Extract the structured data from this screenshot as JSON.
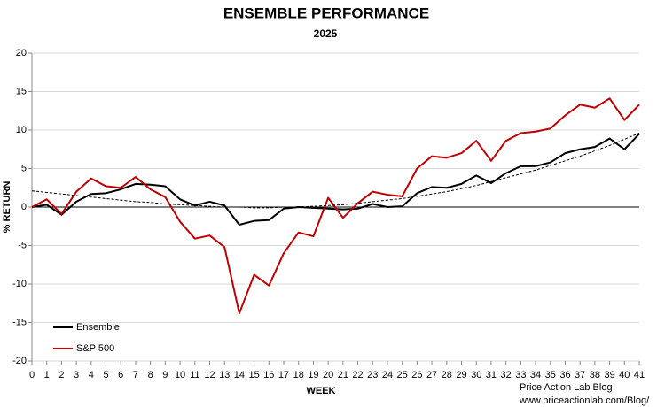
{
  "chart_data": {
    "type": "line",
    "title": "ENSEMBLE PERFORMANCE",
    "subtitle": "2025",
    "x_label": "WEEK",
    "y_label": "% RETURN",
    "annotations": [
      "Price Action Lab Blog",
      "www.priceactionlab.com/Blog/"
    ],
    "x": [
      0,
      1,
      2,
      3,
      4,
      5,
      6,
      7,
      8,
      9,
      10,
      11,
      12,
      13,
      14,
      15,
      16,
      17,
      18,
      19,
      20,
      21,
      22,
      23,
      24,
      25,
      26,
      27,
      28,
      29,
      30,
      31,
      32,
      33,
      34,
      35,
      36,
      37,
      38,
      39,
      40,
      41
    ],
    "series": [
      {
        "name": "Ensemble",
        "color": "#000000",
        "values": [
          0,
          0.3,
          -1,
          0.7,
          1.7,
          1.8,
          2.3,
          3.0,
          2.9,
          2.7,
          1.0,
          0.2,
          0.7,
          0.2,
          -2.3,
          -1.8,
          -1.7,
          -0.2,
          0,
          -0.1,
          -0.2,
          -0.3,
          -0.2,
          0.4,
          0,
          0.1,
          1.8,
          2.6,
          2.5,
          3.0,
          4.1,
          3.1,
          4.4,
          5.3,
          5.3,
          5.8,
          7.0,
          7.5,
          7.8,
          8.9,
          7.5,
          9.5
        ]
      },
      {
        "name": "S&P 500",
        "color": "#c00000",
        "values": [
          0,
          1.0,
          -0.9,
          2.0,
          3.7,
          2.7,
          2.5,
          3.9,
          2.3,
          1.3,
          -1.9,
          -4.1,
          -3.7,
          -5.2,
          -13.8,
          -8.8,
          -10.2,
          -6.0,
          -3.3,
          -3.8,
          1.2,
          -1.4,
          0.5,
          2.0,
          1.6,
          1.4,
          5.0,
          6.6,
          6.4,
          7.0,
          8.6,
          6.0,
          8.6,
          9.6,
          9.8,
          10.2,
          11.9,
          13.3,
          12.9,
          14.1,
          11.3,
          13.3
        ]
      },
      {
        "color": "#000000",
        "dashed": true,
        "values": [
          2.1,
          1.9,
          1.7,
          1.5,
          1.3,
          1.1,
          0.9,
          0.7,
          0.6,
          0.4,
          0.3,
          0.2,
          0.1,
          0,
          0,
          -0.1,
          -0.1,
          0,
          0,
          0.1,
          0.2,
          0.3,
          0.5,
          0.7,
          0.9,
          1.1,
          1.4,
          1.7,
          2.0,
          2.4,
          2.8,
          3.3,
          3.8,
          4.3,
          4.8,
          5.4,
          6.0,
          6.6,
          7.3,
          8.0,
          8.8,
          9.6
        ]
      }
    ],
    "xlim": [
      0,
      41
    ],
    "xticks": [
      0,
      1,
      2,
      3,
      4,
      5,
      6,
      7,
      8,
      9,
      10,
      11,
      12,
      13,
      14,
      15,
      16,
      17,
      18,
      19,
      20,
      21,
      22,
      23,
      24,
      25,
      26,
      27,
      28,
      29,
      30,
      31,
      32,
      33,
      34,
      35,
      36,
      37,
      38,
      39,
      40,
      41
    ],
    "ylim": [
      -20,
      20
    ],
    "yticks": [
      -20,
      -15,
      -10,
      -5,
      0,
      5,
      10,
      15,
      20
    ],
    "grid": true,
    "legend": "lower left"
  }
}
